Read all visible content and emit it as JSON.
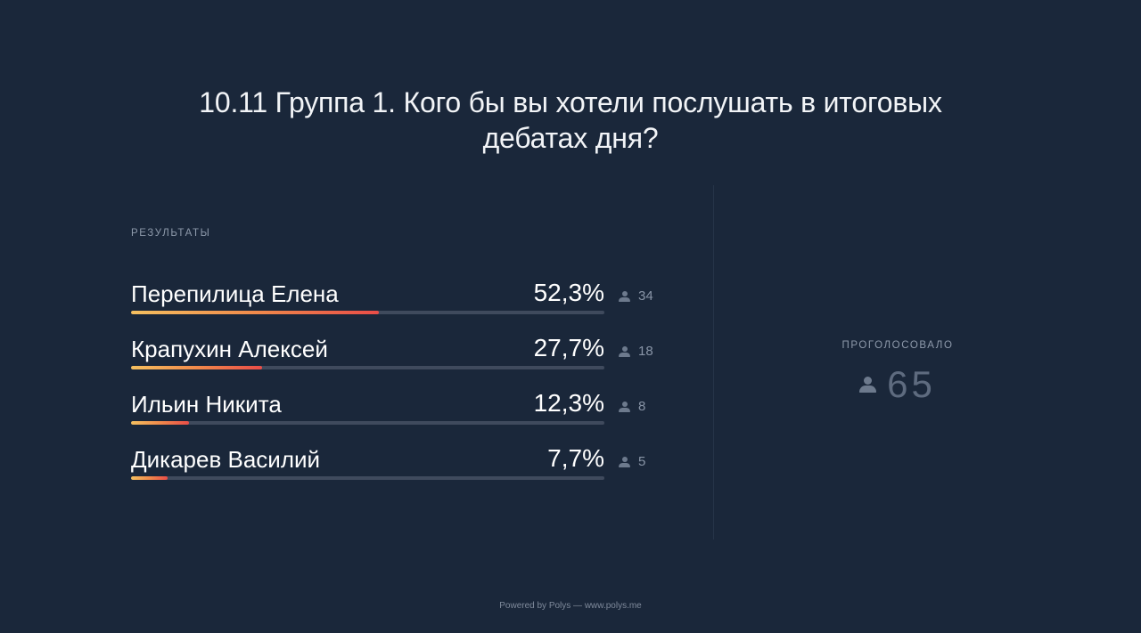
{
  "poll": {
    "title": "10.11 Группа 1. Кого бы вы хотели послушать в итоговых дебатах дня?",
    "results_label": "РЕЗУЛЬТАТЫ",
    "options": [
      {
        "name": "Перепилица Елена",
        "percent_label": "52,3%",
        "votes": "34",
        "fraction": 0.523
      },
      {
        "name": "Крапухин Алексей",
        "percent_label": "27,7%",
        "votes": "18",
        "fraction": 0.277
      },
      {
        "name": "Ильин Никита",
        "percent_label": "12,3%",
        "votes": "8",
        "fraction": 0.123
      },
      {
        "name": "Дикарев Василий",
        "percent_label": "7,7%",
        "votes": "5",
        "fraction": 0.077
      }
    ],
    "total_label": "ПРОГОЛОСОВАЛО",
    "total_value": "65",
    "icon": "person-icon"
  },
  "footer": {
    "text": "Powered by Polys — www.polys.me"
  },
  "colors": {
    "background": "#1a273a",
    "bar_track": "#3f4a5d",
    "bar_gradient_start": "#f5c060",
    "bar_gradient_end": "#e94d48"
  }
}
